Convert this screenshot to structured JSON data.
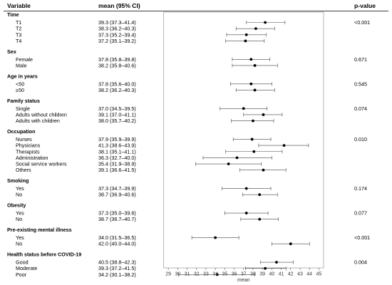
{
  "headers": {
    "variable": "Variable",
    "mean_ci": "mean (95% CI)",
    "p_value": "p-value"
  },
  "chart_data": {
    "type": "forest",
    "xlabel": "mean",
    "xlim": [
      28.5,
      45.5
    ],
    "ticks": [
      29,
      30,
      31,
      32,
      33,
      34,
      35,
      36,
      37,
      38,
      39,
      40,
      41,
      42,
      43,
      44,
      45
    ],
    "groups": [
      {
        "name": "Time",
        "p_value": "<0.001",
        "rows": [
          {
            "label": "T1",
            "ci_text": "39.3 (37.3–41.4)",
            "mean": 39.3,
            "lower": 37.3,
            "upper": 41.4
          },
          {
            "label": "T2",
            "ci_text": "38.3 (36.2–40.3)",
            "mean": 38.3,
            "lower": 36.2,
            "upper": 40.3
          },
          {
            "label": "T3",
            "ci_text": "37.3 (35.2–39.4)",
            "mean": 37.3,
            "lower": 35.2,
            "upper": 39.4
          },
          {
            "label": "T4",
            "ci_text": "37.2 (35.1–39.2)",
            "mean": 37.2,
            "lower": 35.1,
            "upper": 39.2
          }
        ]
      },
      {
        "name": "Sex",
        "p_value": "0.671",
        "rows": [
          {
            "label": "Female",
            "ci_text": "37.8 (35.8–39.8)",
            "mean": 37.8,
            "lower": 35.8,
            "upper": 39.8
          },
          {
            "label": "Male",
            "ci_text": "38.2 (35.8–40.6)",
            "mean": 38.2,
            "lower": 35.8,
            "upper": 40.6
          }
        ]
      },
      {
        "name": "Age in years",
        "p_value": "0.545",
        "rows": [
          {
            "label": "<50",
            "ci_text": "37.8 (35.6–40.0)",
            "mean": 37.8,
            "lower": 35.6,
            "upper": 40.0
          },
          {
            "label": "≥50",
            "ci_text": "38.2 (36.2–40.3)",
            "mean": 38.2,
            "lower": 36.2,
            "upper": 40.3
          }
        ]
      },
      {
        "name": "Family status",
        "p_value": "0.074",
        "rows": [
          {
            "label": "Single",
            "ci_text": "37.0 (34.5–39.5)",
            "mean": 37.0,
            "lower": 34.5,
            "upper": 39.5
          },
          {
            "label": "Adults without children",
            "ci_text": "39.1 (37.0–41.1)",
            "mean": 39.1,
            "lower": 37.0,
            "upper": 41.1
          },
          {
            "label": "Adults with children",
            "ci_text": "38.0 (35.7–40.2)",
            "mean": 38.0,
            "lower": 35.7,
            "upper": 40.2
          }
        ]
      },
      {
        "name": "Occupation",
        "p_value": "0.010",
        "rows": [
          {
            "label": "Nurses",
            "ci_text": "37.9 (35.9–39.9)",
            "mean": 37.9,
            "lower": 35.9,
            "upper": 39.9
          },
          {
            "label": "Physicians",
            "ci_text": "41.3 (38.6–43.9)",
            "mean": 41.3,
            "lower": 38.6,
            "upper": 43.9
          },
          {
            "label": "Therapists",
            "ci_text": "38.1 (35.1–41.1)",
            "mean": 38.1,
            "lower": 35.1,
            "upper": 41.1
          },
          {
            "label": "Administration",
            "ci_text": "36.3 (32.7–40.0)",
            "mean": 36.3,
            "lower": 32.7,
            "upper": 40.0
          },
          {
            "label": "Social service workers",
            "ci_text": "35.4 (31.9–38.9)",
            "mean": 35.4,
            "lower": 31.9,
            "upper": 38.9
          },
          {
            "label": "Others",
            "ci_text": "39.1 (36.6–41.5)",
            "mean": 39.1,
            "lower": 36.6,
            "upper": 41.5
          }
        ]
      },
      {
        "name": "Smoking",
        "p_value": "0.174",
        "rows": [
          {
            "label": "Yes",
            "ci_text": "37.3 (34.7–39.9)",
            "mean": 37.3,
            "lower": 34.7,
            "upper": 39.9
          },
          {
            "label": "No",
            "ci_text": "38.7 (36.9–40.6)",
            "mean": 38.7,
            "lower": 36.9,
            "upper": 40.6
          }
        ]
      },
      {
        "name": "Obesity",
        "p_value": "0.077",
        "rows": [
          {
            "label": "Yes",
            "ci_text": "37.3 (35.0–39.6)",
            "mean": 37.3,
            "lower": 35.0,
            "upper": 39.6
          },
          {
            "label": "No",
            "ci_text": "38.7 (36.7–40.7)",
            "mean": 38.7,
            "lower": 36.7,
            "upper": 40.7
          }
        ]
      },
      {
        "name": "Pre-existing mental illness",
        "p_value": "<0.001",
        "rows": [
          {
            "label": "Yes",
            "ci_text": "34.0 (31.5–36.5)",
            "mean": 34.0,
            "lower": 31.5,
            "upper": 36.5
          },
          {
            "label": "No",
            "ci_text": "42.0 (40.0–44.0)",
            "mean": 42.0,
            "lower": 40.0,
            "upper": 44.0
          }
        ]
      },
      {
        "name": "Health status before COVID-19",
        "p_value": "0.004",
        "rows": [
          {
            "label": "Good",
            "ci_text": "40.5 (38.8–42.3)",
            "mean": 40.5,
            "lower": 38.8,
            "upper": 42.3
          },
          {
            "label": "Moderate",
            "ci_text": "39.3 (37.2–41.5)",
            "mean": 39.3,
            "lower": 37.2,
            "upper": 41.5
          },
          {
            "label": "Poor",
            "ci_text": "34.2 (30.1–38.2)",
            "mean": 34.2,
            "lower": 30.1,
            "upper": 38.2
          }
        ]
      }
    ]
  }
}
